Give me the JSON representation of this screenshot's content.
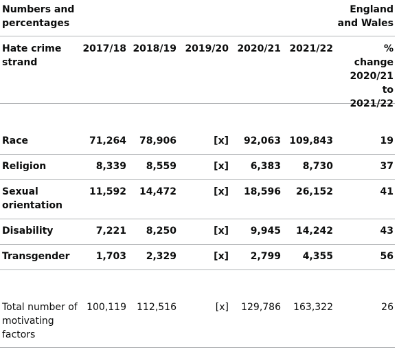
{
  "header": {
    "left": "Numbers and percentages",
    "right": "England and Wales"
  },
  "table": {
    "columns": [
      "Hate crime strand",
      "2017/18",
      "2018/19",
      "2019/20",
      "2020/21",
      "2021/22",
      "% change 2020/21 to 2021/22"
    ],
    "rows": [
      [
        "Race",
        "71,264",
        "78,906",
        "[x]",
        "92,063",
        "109,843",
        "19"
      ],
      [
        "Religion",
        "8,339",
        "8,559",
        "[x]",
        "6,383",
        "8,730",
        "37"
      ],
      [
        "Sexual orientation",
        "11,592",
        "14,472",
        "[x]",
        "18,596",
        "26,152",
        "41"
      ],
      [
        "Disability",
        "7,221",
        "8,250",
        "[x]",
        "9,945",
        "14,242",
        "43"
      ],
      [
        "Transgender",
        "1,703",
        "2,329",
        "[x]",
        "2,799",
        "4,355",
        "56"
      ],
      [
        "Total number of motivating factors",
        "100,119",
        "112,516",
        "[x]",
        "129,786",
        "163,322",
        "26"
      ]
    ]
  }
}
